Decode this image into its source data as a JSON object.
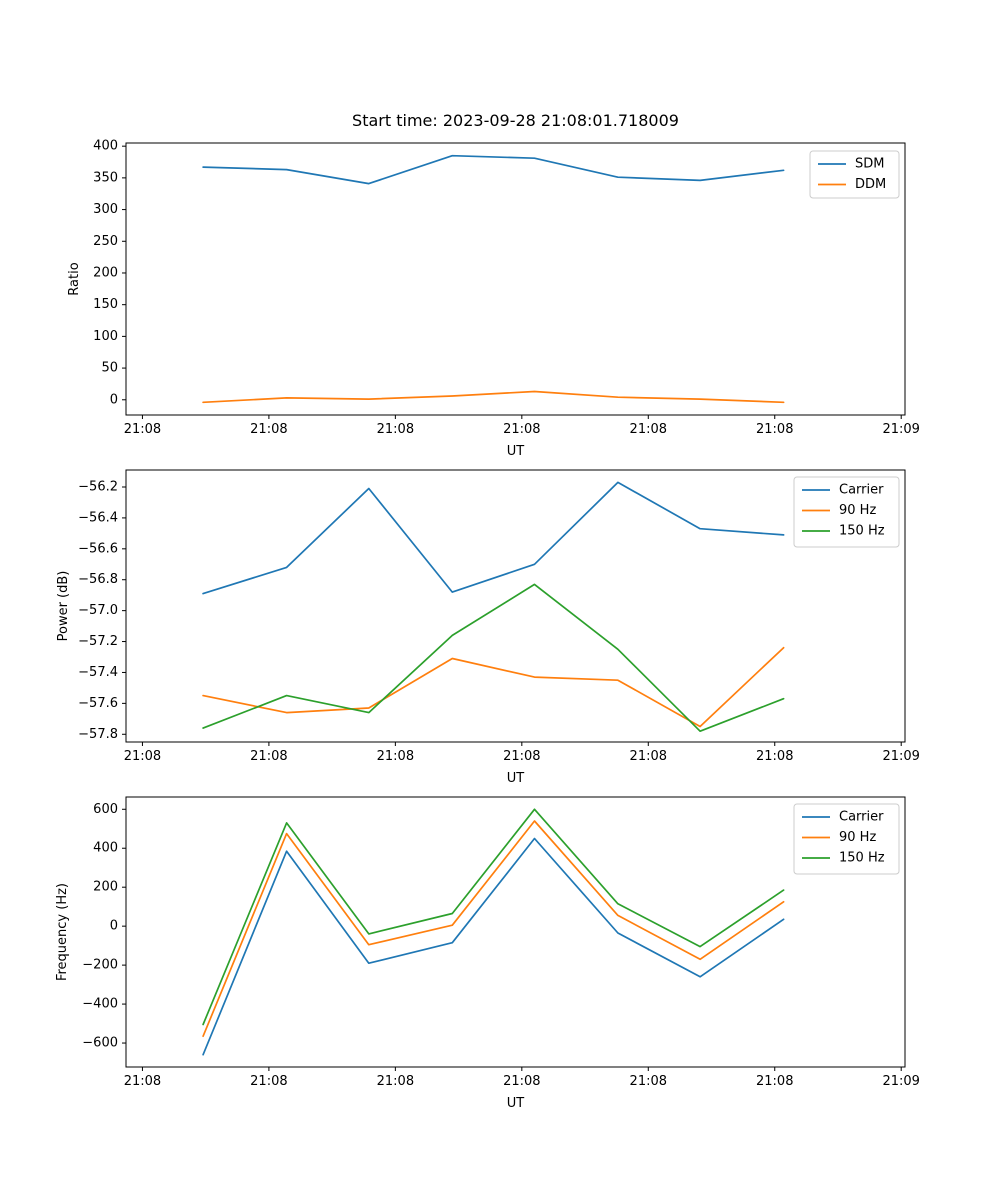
{
  "figure": {
    "title": "Start time: 2023-09-28 21:08:01.718009",
    "background": "#ffffff",
    "axis_color": "#000000",
    "legend_border_color": "#cccccc"
  },
  "chart_data": [
    {
      "type": "line",
      "title": "Start time: 2023-09-28 21:08:01.718009",
      "xlabel": "UT",
      "ylabel": "Ratio",
      "grid": false,
      "xlim": [
        -1.3,
        60.3
      ],
      "ylim": [
        -24,
        405
      ],
      "x_tick_positions": [
        0,
        10,
        20,
        30,
        40,
        50,
        60
      ],
      "x_tick_labels": [
        "21:08",
        "21:08",
        "21:08",
        "21:08",
        "21:08",
        "21:08",
        "21:09"
      ],
      "y_tick_positions": [
        0,
        50,
        100,
        150,
        200,
        250,
        300,
        350,
        400
      ],
      "y_tick_labels": [
        "0",
        "50",
        "100",
        "150",
        "200",
        "250",
        "300",
        "350",
        "400"
      ],
      "x_seconds_after_21_08": [
        4.8,
        11.4,
        17.9,
        24.5,
        31.0,
        37.6,
        44.1,
        50.7
      ],
      "legend": {
        "position": "upper right",
        "entries": [
          "SDM",
          "DDM"
        ]
      },
      "series": [
        {
          "name": "SDM",
          "color": "#1f77b4",
          "values": [
            367,
            363,
            341,
            385,
            381,
            351,
            346,
            362
          ]
        },
        {
          "name": "DDM",
          "color": "#ff7f0e",
          "values": [
            -4,
            3,
            1,
            6,
            13,
            4,
            1,
            -4
          ]
        }
      ]
    },
    {
      "type": "line",
      "title": "",
      "xlabel": "UT",
      "ylabel": "Power (dB)",
      "grid": false,
      "xlim": [
        -1.3,
        60.3
      ],
      "ylim": [
        -57.85,
        -56.09
      ],
      "x_tick_positions": [
        0,
        10,
        20,
        30,
        40,
        50,
        60
      ],
      "x_tick_labels": [
        "21:08",
        "21:08",
        "21:08",
        "21:08",
        "21:08",
        "21:08",
        "21:09"
      ],
      "y_tick_positions": [
        -56.2,
        -56.4,
        -56.6,
        -56.8,
        -57.0,
        -57.2,
        -57.4,
        -57.6,
        -57.8
      ],
      "y_tick_labels": [
        "−56.2",
        "−56.4",
        "−56.6",
        "−56.8",
        "−57.0",
        "−57.2",
        "−57.4",
        "−57.6",
        "−57.8"
      ],
      "x_seconds_after_21_08": [
        4.8,
        11.4,
        17.9,
        24.5,
        31.0,
        37.6,
        44.1,
        50.7
      ],
      "legend": {
        "position": "upper right",
        "entries": [
          "Carrier",
          "90 Hz",
          "150 Hz"
        ]
      },
      "series": [
        {
          "name": "Carrier",
          "color": "#1f77b4",
          "values": [
            -56.89,
            -56.72,
            -56.21,
            -56.88,
            -56.7,
            -56.17,
            -56.47,
            -56.51
          ]
        },
        {
          "name": "90 Hz",
          "color": "#ff7f0e",
          "values": [
            -57.55,
            -57.66,
            -57.63,
            -57.31,
            -57.43,
            -57.45,
            -57.75,
            -57.24
          ]
        },
        {
          "name": "150 Hz",
          "color": "#2ca02c",
          "values": [
            -57.76,
            -57.55,
            -57.66,
            -57.16,
            -56.83,
            -57.25,
            -57.78,
            -57.57
          ]
        }
      ]
    },
    {
      "type": "line",
      "title": "",
      "xlabel": "UT",
      "ylabel": "Frequency (Hz)",
      "grid": false,
      "xlim": [
        -1.3,
        60.3
      ],
      "ylim": [
        -723,
        663
      ],
      "x_tick_positions": [
        0,
        10,
        20,
        30,
        40,
        50,
        60
      ],
      "x_tick_labels": [
        "21:08",
        "21:08",
        "21:08",
        "21:08",
        "21:08",
        "21:08",
        "21:09"
      ],
      "y_tick_positions": [
        600,
        400,
        200,
        0,
        -200,
        -400,
        -600
      ],
      "y_tick_labels": [
        "600",
        "400",
        "200",
        "0",
        "−200",
        "−400",
        "−600"
      ],
      "x_seconds_after_21_08": [
        4.8,
        11.4,
        17.9,
        24.5,
        31.0,
        37.6,
        44.1,
        50.7
      ],
      "legend": {
        "position": "upper right",
        "entries": [
          "Carrier",
          "90 Hz",
          "150 Hz"
        ]
      },
      "series": [
        {
          "name": "Carrier",
          "color": "#1f77b4",
          "values": [
            -660,
            385,
            -190,
            -85,
            450,
            -35,
            -260,
            35
          ]
        },
        {
          "name": "90 Hz",
          "color": "#ff7f0e",
          "values": [
            -565,
            475,
            -95,
            5,
            540,
            55,
            -170,
            125
          ]
        },
        {
          "name": "150 Hz",
          "color": "#2ca02c",
          "values": [
            -505,
            530,
            -40,
            65,
            600,
            115,
            -105,
            185
          ]
        }
      ]
    }
  ]
}
